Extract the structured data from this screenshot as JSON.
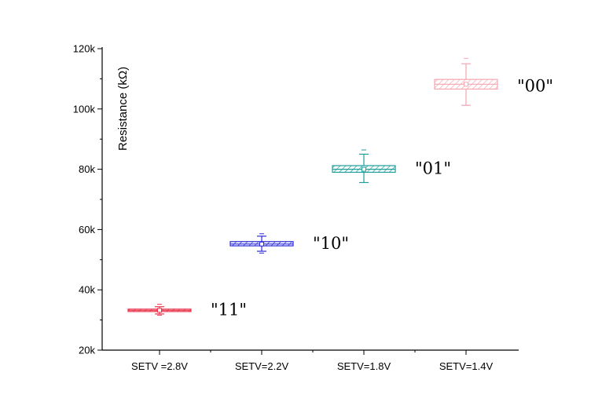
{
  "chart_data": {
    "type": "box",
    "title": "",
    "xlabel": "",
    "ylabel": "Resistance (kΩ)",
    "ylim": [
      20,
      120
    ],
    "yticks": [
      20,
      40,
      60,
      80,
      100,
      120
    ],
    "ytick_labels": [
      "20k",
      "40k",
      "60k",
      "80k",
      "100k",
      "120k"
    ],
    "grid": false,
    "legend": "none",
    "categories": [
      "SETV =2.8V",
      "SETV=2.2V",
      "SETV=1.8V",
      "SETV=1.4V"
    ],
    "series": [
      {
        "category": "SETV =2.8V",
        "state_label": "\"11\"",
        "color": "#e8334a",
        "q1": 32.8,
        "median": 33.2,
        "q3": 33.6,
        "mean": 33.2,
        "whisker_low": 32.0,
        "whisker_high": 34.4,
        "min": 31.6,
        "max": 35.2
      },
      {
        "category": "SETV=2.2V",
        "state_label": "\"10\"",
        "color": "#2b2bd6",
        "q1": 54.6,
        "median": 55.2,
        "q3": 56.0,
        "mean": 55.2,
        "whisker_low": 52.8,
        "whisker_high": 57.8,
        "min": 52.2,
        "max": 58.6
      },
      {
        "category": "SETV=1.8V",
        "state_label": "\"01\"",
        "color": "#1f9e9a",
        "q1": 79.0,
        "median": 80.0,
        "q3": 81.2,
        "mean": 80.0,
        "whisker_low": 75.6,
        "whisker_high": 85.0,
        "min": 75.6,
        "max": 86.4
      },
      {
        "category": "SETV=1.4V",
        "state_label": "\"00\"",
        "color": "#f4a6b0",
        "q1": 106.6,
        "median": 108.2,
        "q3": 109.8,
        "mean": 108.2,
        "whisker_low": 101.2,
        "whisker_high": 115.0,
        "min": 101.2,
        "max": 116.8
      }
    ]
  }
}
